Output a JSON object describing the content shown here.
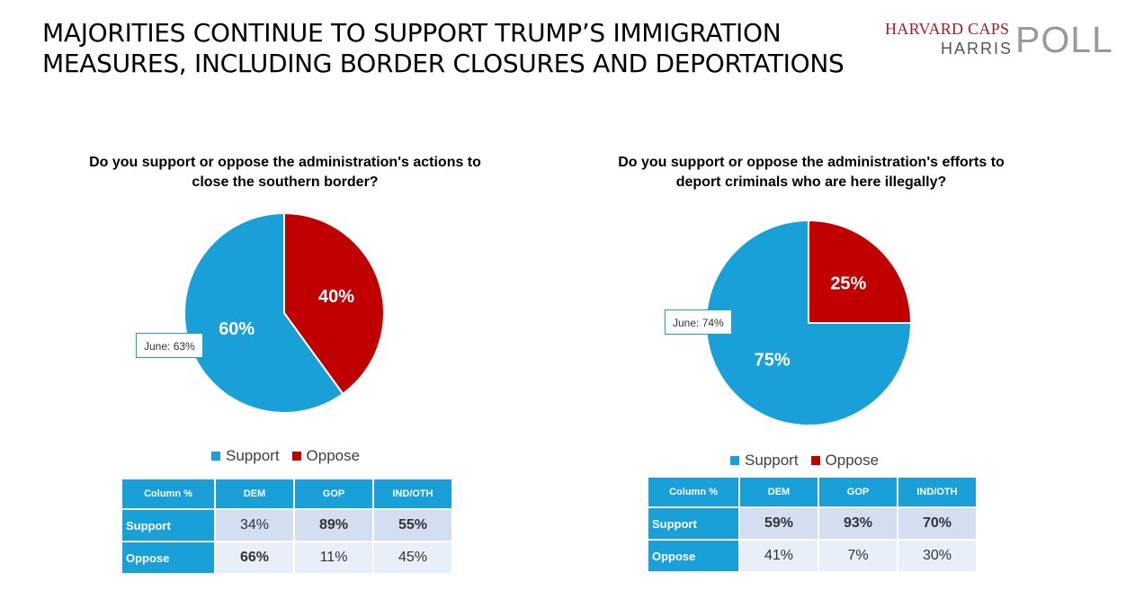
{
  "title_lines": [
    "MAJORITIES CONTINUE TO SUPPORT TRUMP’S IMMIGRATION",
    "MEASURES, INCLUDING BORDER CLOSURES AND DEPORTATIONS"
  ],
  "logo": {
    "line1": "HARVARD CAPS",
    "line2": "HARRIS",
    "line3": "POLL",
    "brand_color": "#a21e27"
  },
  "colors": {
    "support": "#1aa0d8",
    "oppose": "#c00000"
  },
  "chart_data": [
    {
      "type": "pie",
      "question_lines": [
        "Do you support or oppose the administration's actions to",
        "close the southern border?"
      ],
      "categories": [
        "Support",
        "Oppose"
      ],
      "values": [
        60,
        40
      ],
      "labels": [
        "60%",
        "40%"
      ],
      "callout": "June: 63%",
      "legend": [
        "Support",
        "Oppose"
      ],
      "legend_position": "bottom",
      "table": {
        "headers": [
          "Column %",
          "DEM",
          "GOP",
          "IND/OTH"
        ],
        "rows": [
          {
            "label": "Support",
            "values": [
              "34%",
              "89%",
              "55%"
            ],
            "bold": [
              false,
              true,
              true
            ]
          },
          {
            "label": "Oppose",
            "values": [
              "66%",
              "11%",
              "45%"
            ],
            "bold": [
              true,
              false,
              false
            ]
          }
        ]
      }
    },
    {
      "type": "pie",
      "question_lines": [
        "Do you support or oppose the administration's efforts to",
        "deport criminals who are here illegally?"
      ],
      "categories": [
        "Support",
        "Oppose"
      ],
      "values": [
        75,
        25
      ],
      "labels": [
        "75%",
        "25%"
      ],
      "callout": "June: 74%",
      "legend": [
        "Support",
        "Oppose"
      ],
      "legend_position": "bottom",
      "table": {
        "headers": [
          "Column %",
          "DEM",
          "GOP",
          "IND/OTH"
        ],
        "rows": [
          {
            "label": "Support",
            "values": [
              "59%",
              "93%",
              "70%"
            ],
            "bold": [
              true,
              true,
              true
            ]
          },
          {
            "label": "Oppose",
            "values": [
              "41%",
              "7%",
              "30%"
            ],
            "bold": [
              false,
              false,
              false
            ]
          }
        ]
      }
    }
  ]
}
